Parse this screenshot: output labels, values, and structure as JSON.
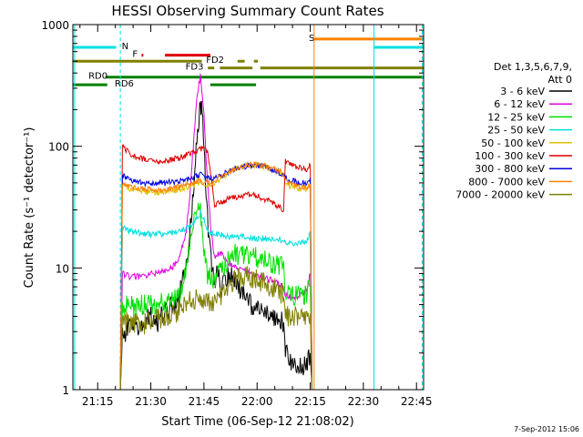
{
  "chart_data": {
    "type": "line",
    "title": "HESSI Observing Summary Count Rates",
    "xlabel": "Start Time (06-Sep-12 21:08:02)",
    "ylabel": "Count Rate (s⁻¹ detector⁻¹)",
    "yscale": "log",
    "xlim_minutes": [
      0,
      99
    ],
    "ylim": [
      1,
      1000
    ],
    "x_tick_labels": [
      "21:15",
      "21:30",
      "21:45",
      "22:00",
      "22:15",
      "22:30",
      "22:45"
    ],
    "x_tick_minutes": [
      7,
      22,
      37,
      52,
      67,
      82,
      97
    ],
    "y_tick_labels": [
      "1",
      "10",
      "100",
      "1000"
    ],
    "y_tick_values": [
      1,
      10,
      100,
      1000
    ],
    "legend_header": [
      "Det 1,3,5,6,7,9,",
      "Att 0"
    ],
    "legend_position": "right",
    "timestamp": "7-Sep-2012 15:06",
    "series": [
      {
        "name": "3 - 6 keV",
        "color": "#000000",
        "x": [
          13.4,
          14,
          16,
          18,
          20,
          22,
          24,
          26,
          28,
          30,
          32,
          33,
          34,
          35,
          36,
          36.5,
          37,
          38,
          39,
          40,
          41,
          42,
          43,
          44,
          46,
          48,
          50,
          52,
          54,
          56,
          58,
          59.5,
          60,
          62,
          64,
          66,
          67,
          67.5
        ],
        "y": [
          1,
          2.8,
          3.3,
          3.1,
          3.5,
          4,
          3.6,
          4.3,
          5,
          6,
          10,
          18,
          40,
          110,
          230,
          200,
          90,
          25,
          12,
          8,
          9,
          7,
          8,
          9,
          7.5,
          6,
          5,
          4.5,
          4.3,
          4,
          3.8,
          3.5,
          2,
          1.6,
          1.5,
          1.7,
          2,
          1
        ]
      },
      {
        "name": "6 - 12 keV",
        "color": "#e000e0",
        "x": [
          13.4,
          14,
          16,
          18,
          20,
          22,
          24,
          26,
          28,
          30,
          32,
          33,
          34,
          35,
          36,
          37,
          38,
          39,
          40,
          41,
          42,
          43,
          44,
          46,
          48,
          50,
          52,
          54,
          56,
          58,
          59.5,
          60,
          62,
          64,
          66,
          67,
          67.5
        ],
        "y": [
          1,
          9,
          8.5,
          8.5,
          8.6,
          9,
          9,
          9.5,
          10,
          12,
          20,
          40,
          100,
          250,
          380,
          180,
          50,
          20,
          12,
          13,
          13,
          12,
          11,
          10,
          9.5,
          9,
          8.5,
          8.2,
          8,
          7.5,
          7,
          6,
          5.8,
          5.8,
          6.5,
          9,
          1
        ]
      },
      {
        "name": "12 - 25 keV",
        "color": "#00e000",
        "x": [
          13.4,
          14,
          16,
          18,
          20,
          22,
          24,
          26,
          28,
          30,
          32,
          33,
          34,
          35,
          36,
          37,
          38,
          39,
          40,
          41,
          42,
          43,
          44,
          46,
          48,
          50,
          52,
          54,
          56,
          58,
          59.5,
          60,
          62,
          64,
          66,
          67,
          67.5
        ],
        "y": [
          1,
          5,
          5,
          5,
          5,
          5,
          5,
          5.2,
          5.5,
          6,
          10,
          15,
          25,
          35,
          30,
          15,
          9,
          8,
          8,
          9,
          10,
          11,
          12,
          13,
          13,
          12.5,
          12,
          11.5,
          11,
          10.5,
          10,
          6,
          6,
          6,
          6.2,
          7,
          1
        ]
      },
      {
        "name": "25 - 50 keV",
        "color": "#00e0e0",
        "x": [
          13.4,
          14,
          16,
          18,
          20,
          22,
          24,
          26,
          28,
          30,
          32,
          34,
          35,
          36,
          37,
          38,
          39,
          40,
          42,
          44,
          46,
          48,
          50,
          52,
          54,
          56,
          58,
          59.5,
          60,
          62,
          64,
          66,
          67,
          67.5
        ],
        "y": [
          1,
          22,
          20,
          19.5,
          19,
          19,
          19,
          19,
          19.5,
          20,
          21,
          23,
          26,
          28,
          25,
          21,
          19,
          19,
          19,
          18,
          18,
          18,
          17.5,
          17.5,
          17.5,
          17,
          17,
          17,
          16,
          16,
          16,
          16.5,
          20,
          1
        ]
      },
      {
        "name": "50 - 100 keV",
        "color": "#e0c000",
        "x": [
          13.4,
          14,
          16,
          18,
          20,
          22,
          24,
          26,
          28,
          30,
          32,
          34,
          36,
          38,
          40,
          42,
          44,
          46,
          48,
          50,
          52,
          54,
          56,
          58,
          59.5,
          60,
          62,
          64,
          66,
          67,
          67.5
        ],
        "y": [
          1,
          48,
          45,
          43,
          42,
          42,
          42,
          42,
          43,
          44,
          46,
          48,
          50,
          48,
          50,
          55,
          60,
          65,
          68,
          70,
          70,
          68,
          65,
          62,
          58,
          50,
          46,
          45,
          45,
          48,
          1
        ]
      },
      {
        "name": "100 - 300 keV",
        "color": "#e00000",
        "x": [
          13.4,
          14,
          16,
          18,
          20,
          22,
          24,
          26,
          28,
          30,
          32,
          34,
          36,
          38,
          40,
          42,
          44,
          46,
          48,
          50,
          52,
          54,
          56,
          58,
          59.5,
          60,
          62,
          64,
          66,
          67,
          67.5
        ],
        "y": [
          1,
          100,
          88,
          82,
          78,
          76,
          75,
          76,
          78,
          80,
          85,
          90,
          96,
          92,
          33,
          35,
          37,
          38,
          39,
          40,
          39,
          37,
          35,
          32,
          30,
          75,
          70,
          66,
          65,
          70,
          1
        ]
      },
      {
        "name": "300 - 800 keV",
        "color": "#0000e0",
        "x": [
          13.4,
          14,
          16,
          18,
          20,
          22,
          24,
          26,
          28,
          30,
          32,
          34,
          36,
          38,
          40,
          42,
          44,
          46,
          48,
          50,
          52,
          54,
          56,
          58,
          59.5,
          60,
          62,
          64,
          66,
          67,
          67.5
        ],
        "y": [
          1,
          58,
          54,
          51,
          50,
          50,
          50,
          50,
          51,
          52,
          54,
          56,
          58,
          54,
          55,
          58,
          62,
          65,
          68,
          70,
          70,
          68,
          65,
          62,
          58,
          55,
          52,
          50,
          50,
          55,
          1
        ]
      },
      {
        "name": "800 - 7000 keV",
        "color": "#ff8000",
        "x": [
          13.4,
          14,
          16,
          18,
          20,
          22,
          24,
          26,
          28,
          30,
          32,
          34,
          36,
          38,
          40,
          42,
          44,
          46,
          48,
          50,
          52,
          54,
          56,
          58,
          59.5,
          60,
          62,
          64,
          66,
          67,
          67.5
        ],
        "y": [
          1,
          50,
          47,
          45,
          44,
          44,
          44,
          44,
          45,
          46,
          48,
          50,
          52,
          50,
          52,
          57,
          62,
          66,
          69,
          71,
          71,
          69,
          66,
          63,
          59,
          52,
          48,
          46,
          46,
          49,
          1
        ]
      },
      {
        "name": "7000 - 20000 keV",
        "color": "#808000",
        "x": [
          13.4,
          14,
          16,
          18,
          20,
          22,
          24,
          26,
          28,
          30,
          32,
          34,
          36,
          38,
          40,
          42,
          44,
          46,
          48,
          50,
          52,
          54,
          56,
          58,
          59.5,
          60,
          62,
          64,
          66,
          67,
          67.5
        ],
        "y": [
          1,
          3.6,
          3.5,
          3.6,
          3.5,
          3.5,
          3.8,
          3.8,
          4,
          4.5,
          5,
          5.5,
          5.5,
          5,
          5.5,
          6,
          7,
          8,
          8.5,
          8.5,
          8,
          7.5,
          7,
          6.5,
          6,
          4,
          4,
          4,
          4,
          4.2,
          1
        ]
      }
    ],
    "flags": [
      {
        "label": "N",
        "color": "#00e0e0",
        "value": 650,
        "label_x_minutes": 13.8,
        "segments": [
          [
            0,
            12.2
          ],
          [
            85,
            99
          ]
        ]
      },
      {
        "label": "S",
        "color": "#ff8000",
        "value": 760,
        "label_x_minutes": 66.6,
        "segments": [
          [
            68.1,
            99
          ]
        ]
      },
      {
        "label": "F",
        "color": "#e00000",
        "value": 560,
        "label_x_minutes": 16.8,
        "segments": [
          [
            19.4,
            19.9
          ],
          [
            26,
            38.8
          ]
        ]
      },
      {
        "label": "FD2",
        "color": "#808000",
        "value": 500,
        "label_x_minutes": 37.6,
        "segments": [
          [
            0,
            36.4
          ],
          [
            46.5,
            48.5
          ],
          [
            51.1,
            52.2
          ]
        ]
      },
      {
        "label": "FD3",
        "color": "#808000",
        "value": 440,
        "label_x_minutes": 31.8,
        "segments": [
          [
            38.1,
            39.9
          ],
          [
            41.5,
            50.7
          ],
          [
            52.9,
            99
          ]
        ]
      },
      {
        "label": "RD0",
        "color": "#008000",
        "value": 370,
        "label_x_minutes": 4.4,
        "segments": [
          [
            9.2,
            99
          ]
        ]
      },
      {
        "label": "RD6",
        "color": "#008000",
        "value": 320,
        "label_x_minutes": 11.8,
        "segments": [
          [
            0,
            9.7
          ],
          [
            38.8,
            51.7
          ]
        ]
      }
    ],
    "vertical_markers": [
      {
        "color": "#00e0e0",
        "style": "dashed",
        "x_minutes": 13.4
      },
      {
        "color": "#00e0e0",
        "style": "solid",
        "x_minutes": 0.5
      },
      {
        "color": "#ff8000",
        "style": "solid",
        "x_minutes": 68.1
      },
      {
        "color": "#00e0e0",
        "style": "solid",
        "x_minutes": 85
      },
      {
        "color": "#00e0e0",
        "style": "dashed",
        "x_minutes": 98.6
      }
    ]
  }
}
